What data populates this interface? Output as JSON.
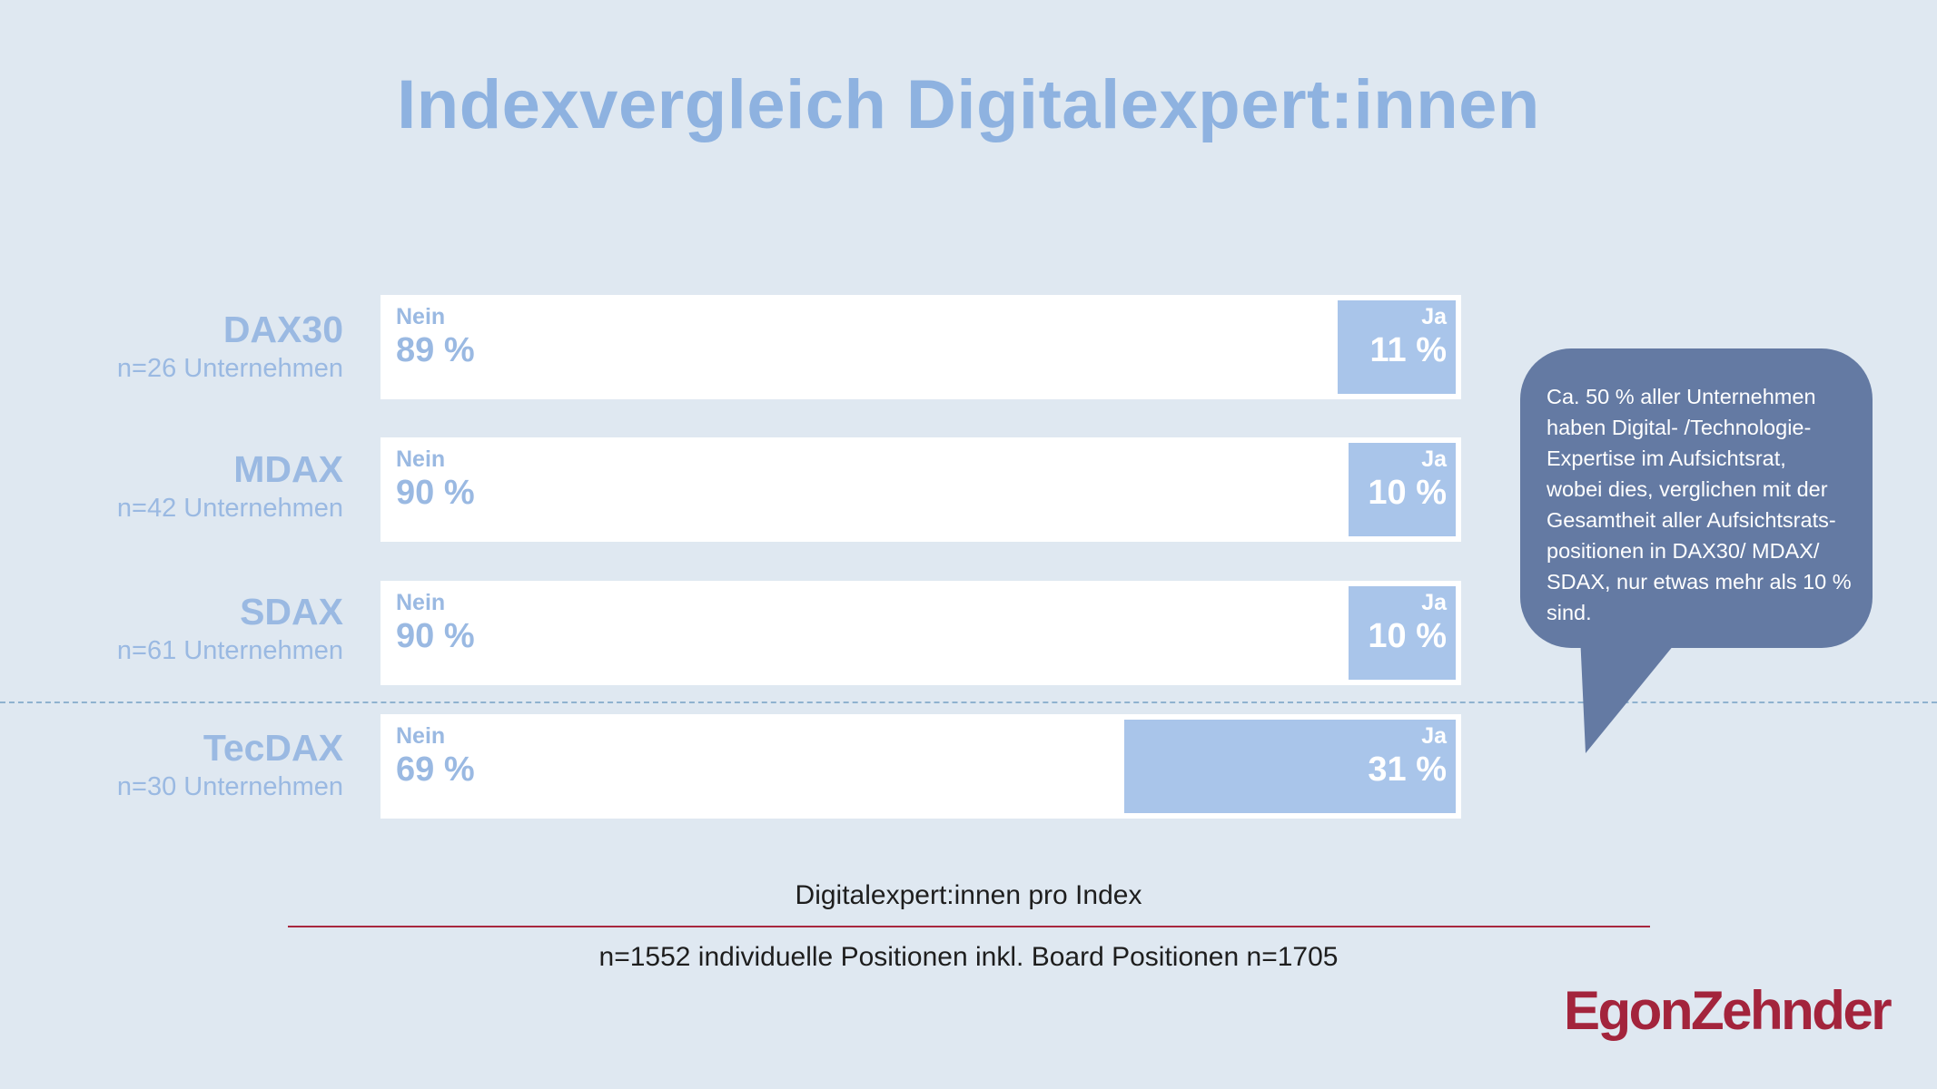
{
  "title": "Indexvergleich Digitalexpert:innen",
  "chart_data": {
    "type": "bar",
    "orientation": "horizontal",
    "stacked": true,
    "percent_sign": "%",
    "categories": [
      "DAX30",
      "MDAX",
      "SDAX",
      "TecDAX"
    ],
    "category_subtitles": [
      "n=26 Unternehmen",
      "n=42 Unternehmen",
      "n=61 Unternehmen",
      "n=30 Unternehmen"
    ],
    "series": [
      {
        "name": "Nein",
        "values": [
          89,
          90,
          90,
          69
        ],
        "color": "#ffffff"
      },
      {
        "name": "Ja",
        "values": [
          11,
          10,
          10,
          31
        ],
        "color": "#a9c5ea"
      }
    ],
    "xlabel": "Digitalexpert:innen pro Index",
    "xlim": [
      0,
      100
    ],
    "grid": false,
    "legend": "none"
  },
  "callout": {
    "lines": [
      "Ca. 50 % aller Unternehmen",
      "haben Digital- /Technologie-",
      "Expertise im Aufsichtsrat,",
      "wobei dies, verglichen mit der",
      "Gesamtheit aller Aufsichtsrats-",
      "positionen in DAX30/ MDAX/",
      "SDAX, nur etwas mehr als 10 %",
      "sind."
    ]
  },
  "footnote": "n=1552 individuelle Positionen inkl. Board Positionen n=1705",
  "logo": "EgonZehnder",
  "colors": {
    "background": "#dfe8f1",
    "accent": "#8eb2e0",
    "ja_fill": "#a9c5ea",
    "callout": "#647aa3",
    "brand": "#a3243c"
  }
}
